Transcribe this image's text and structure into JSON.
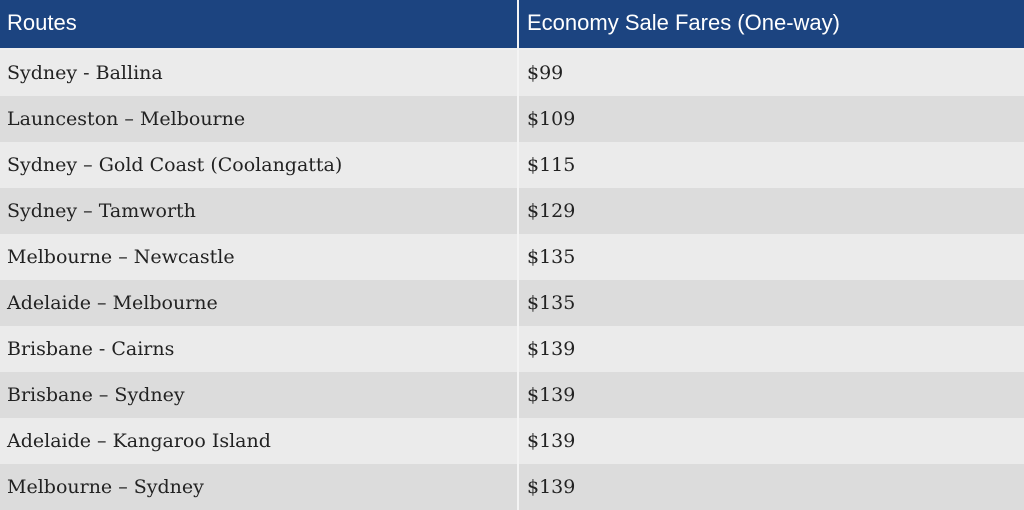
{
  "table": {
    "header": [
      "Routes",
      "Economy Sale Fares (One-way)"
    ],
    "rows": [
      [
        "Sydney - Ballina",
        "$99"
      ],
      [
        "Launceston – Melbourne",
        "$109"
      ],
      [
        "Sydney – Gold Coast (Coolangatta)",
        "$115"
      ],
      [
        "Sydney – Tamworth",
        "$129"
      ],
      [
        "Melbourne – Newcastle",
        "$135"
      ],
      [
        "Adelaide – Melbourne",
        "$135"
      ],
      [
        "Brisbane - Cairns",
        "$139"
      ],
      [
        "Brisbane – Sydney",
        "$139"
      ],
      [
        "Adelaide – Kangaroo Island",
        "$139"
      ],
      [
        "Melbourne – Sydney",
        "$139"
      ]
    ]
  }
}
